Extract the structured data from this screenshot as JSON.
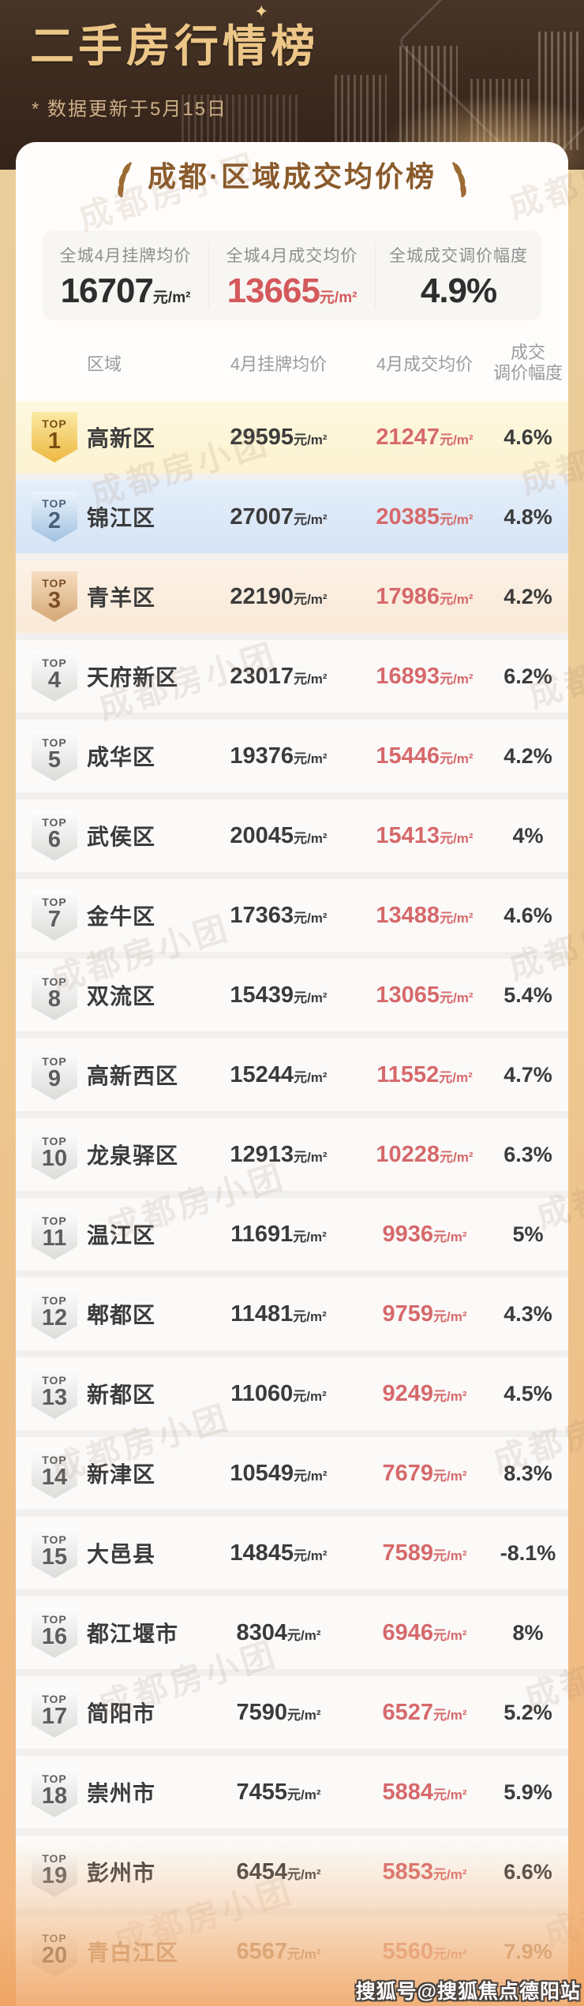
{
  "header": {
    "title": "二手房行情榜",
    "update_note": "* 数据更新于5月15日",
    "sparkle": "✦"
  },
  "card": {
    "title": "成都·区域成交均价榜",
    "badge_label": "TOP",
    "summary": [
      {
        "label": "全城4月挂牌均价",
        "value": "16707",
        "unit": "元/m²"
      },
      {
        "label": "全城4月成交均价",
        "value": "13665",
        "unit": "元/m²"
      },
      {
        "label": "全城成交调价幅度",
        "value": "4.9%",
        "unit": ""
      }
    ],
    "table": {
      "col_region": "区域",
      "col_listing": "4月挂牌均价",
      "col_deal": "4月成交均价",
      "col_change_line1": "成交",
      "col_change_line2": "调价幅度"
    },
    "rows": [
      {
        "rank": 1,
        "district": "高新区",
        "listing": "29595",
        "deal": "21247",
        "change": "4.6%"
      },
      {
        "rank": 2,
        "district": "锦江区",
        "listing": "27007",
        "deal": "20385",
        "change": "4.8%"
      },
      {
        "rank": 3,
        "district": "青羊区",
        "listing": "22190",
        "deal": "17986",
        "change": "4.2%"
      },
      {
        "rank": 4,
        "district": "天府新区",
        "listing": "23017",
        "deal": "16893",
        "change": "6.2%"
      },
      {
        "rank": 5,
        "district": "成华区",
        "listing": "19376",
        "deal": "15446",
        "change": "4.2%"
      },
      {
        "rank": 6,
        "district": "武侯区",
        "listing": "20045",
        "deal": "15413",
        "change": "4%"
      },
      {
        "rank": 7,
        "district": "金牛区",
        "listing": "17363",
        "deal": "13488",
        "change": "4.6%"
      },
      {
        "rank": 8,
        "district": "双流区",
        "listing": "15439",
        "deal": "13065",
        "change": "5.4%"
      },
      {
        "rank": 9,
        "district": "高新西区",
        "listing": "15244",
        "deal": "11552",
        "change": "4.7%"
      },
      {
        "rank": 10,
        "district": "龙泉驿区",
        "listing": "12913",
        "deal": "10228",
        "change": "6.3%"
      },
      {
        "rank": 11,
        "district": "温江区",
        "listing": "11691",
        "deal": "9936",
        "change": "5%"
      },
      {
        "rank": 12,
        "district": "郫都区",
        "listing": "11481",
        "deal": "9759",
        "change": "4.3%"
      },
      {
        "rank": 13,
        "district": "新都区",
        "listing": "11060",
        "deal": "9249",
        "change": "4.5%"
      },
      {
        "rank": 14,
        "district": "新津区",
        "listing": "10549",
        "deal": "7679",
        "change": "8.3%"
      },
      {
        "rank": 15,
        "district": "大邑县",
        "listing": "14845",
        "deal": "7589",
        "change": "-8.1%"
      },
      {
        "rank": 16,
        "district": "都江堰市",
        "listing": "8304",
        "deal": "6946",
        "change": "8%"
      },
      {
        "rank": 17,
        "district": "简阳市",
        "listing": "7590",
        "deal": "6527",
        "change": "5.2%"
      },
      {
        "rank": 18,
        "district": "崇州市",
        "listing": "7455",
        "deal": "5884",
        "change": "5.9%"
      },
      {
        "rank": 19,
        "district": "彭州市",
        "listing": "6454",
        "deal": "5853",
        "change": "6.6%"
      },
      {
        "rank": 20,
        "district": "青白江区",
        "listing": "6567",
        "deal": "5560",
        "change": "7.9%"
      }
    ]
  },
  "units": {
    "per_sqm": "元/m²"
  },
  "watermark": {
    "text": "成都房小团",
    "credit": "搜狐号@搜狐焦点德阳站"
  },
  "colors": {
    "header_bg": "#3a281d",
    "title_gold": "#ecc687",
    "accent_red": "#d6696b",
    "brown": "#8a5a2a"
  },
  "chart_data": {
    "type": "table",
    "title": "成都·区域成交均价榜",
    "subtitle": "二手房行情榜 * 数据更新于5月15日",
    "summary": {
      "全城4月挂牌均价": "16707元/m²",
      "全城4月成交均价": "13665元/m²",
      "全城成交调价幅度": "4.9%"
    },
    "columns": [
      "排名",
      "区域",
      "4月挂牌均价(元/m²)",
      "4月成交均价(元/m²)",
      "成交调价幅度"
    ],
    "rows": [
      [
        1,
        "高新区",
        29595,
        21247,
        "4.6%"
      ],
      [
        2,
        "锦江区",
        27007,
        20385,
        "4.8%"
      ],
      [
        3,
        "青羊区",
        22190,
        17986,
        "4.2%"
      ],
      [
        4,
        "天府新区",
        23017,
        16893,
        "6.2%"
      ],
      [
        5,
        "成华区",
        19376,
        15446,
        "4.2%"
      ],
      [
        6,
        "武侯区",
        20045,
        15413,
        "4%"
      ],
      [
        7,
        "金牛区",
        17363,
        13488,
        "4.6%"
      ],
      [
        8,
        "双流区",
        15439,
        13065,
        "5.4%"
      ],
      [
        9,
        "高新西区",
        15244,
        11552,
        "4.7%"
      ],
      [
        10,
        "龙泉驿区",
        12913,
        10228,
        "6.3%"
      ],
      [
        11,
        "温江区",
        11691,
        9936,
        "5%"
      ],
      [
        12,
        "郫都区",
        11481,
        9759,
        "4.3%"
      ],
      [
        13,
        "新都区",
        11060,
        9249,
        "4.5%"
      ],
      [
        14,
        "新津区",
        10549,
        7679,
        "8.3%"
      ],
      [
        15,
        "大邑县",
        14845,
        7589,
        "-8.1%"
      ],
      [
        16,
        "都江堰市",
        8304,
        6946,
        "8%"
      ],
      [
        17,
        "简阳市",
        7590,
        6527,
        "5.2%"
      ],
      [
        18,
        "崇州市",
        7455,
        5884,
        "5.9%"
      ],
      [
        19,
        "彭州市",
        6454,
        5853,
        "6.6%"
      ],
      [
        20,
        "青白江区",
        6567,
        5560,
        "7.9%"
      ]
    ]
  }
}
